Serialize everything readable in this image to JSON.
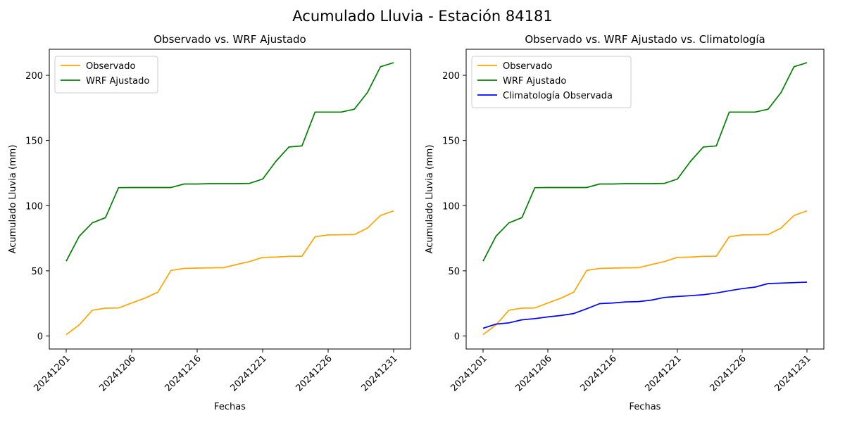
{
  "figure_title": "Acumulado Lluvia - Estación 84181",
  "colors": {
    "observado": "#ffa500",
    "wrf": "#008000",
    "climatologia": "#0000ff"
  },
  "chart_data": [
    {
      "type": "line",
      "title": "Observado vs. WRF Ajustado",
      "xlabel": "Fechas",
      "ylabel": "Acumulado Lluvia (mm)",
      "ylim": [
        -10,
        220
      ],
      "yticks": [
        0,
        50,
        100,
        150,
        200
      ],
      "xticks": [
        "20241201",
        "20241206",
        "20241216",
        "20241221",
        "20241226",
        "20241231"
      ],
      "legend_position": "upper-left",
      "grid": false,
      "categories": [
        "20241201",
        "20241202",
        "20241203",
        "20241204",
        "20241205",
        "20241206",
        "20241207",
        "20241208",
        "20241209",
        "20241210",
        "20241211",
        "20241212",
        "20241213",
        "20241214",
        "20241215",
        "20241216",
        "20241217",
        "20241218",
        "20241219",
        "20241220",
        "20241221",
        "20241222",
        "20241223",
        "20241224",
        "20241225",
        "20241226",
        "20241227",
        "20241228",
        "20241229",
        "20241230",
        "20241231"
      ],
      "series": [
        {
          "name": "Observado",
          "color": "#ffa500",
          "values": [
            1,
            8.5,
            19.8,
            21.3,
            21.5,
            25.3,
            29,
            33.6,
            50.3,
            51.8,
            52.1,
            52.3,
            52.4,
            54.8,
            57.1,
            60.3,
            60.5,
            61.1,
            61.2,
            76.1,
            77.5,
            77.6,
            77.8,
            82.8,
            92.5,
            96,
            null,
            null,
            null,
            null,
            null
          ]
        },
        {
          "name": "WRF Ajustado",
          "color": "#008000",
          "values": [
            57.4,
            76.6,
            86.8,
            90.8,
            113.8,
            113.9,
            113.9,
            113.9,
            113.9,
            116.6,
            116.6,
            116.9,
            116.9,
            116.9,
            117.1,
            120.4,
            133.9,
            145,
            145.8,
            171.8,
            171.8,
            171.8,
            174,
            186.8,
            206.6,
            209.7,
            null,
            null,
            null,
            null,
            null
          ]
        }
      ]
    },
    {
      "type": "line",
      "title": "Observado vs. WRF Ajustado vs. Climatología",
      "xlabel": "Fechas",
      "ylabel": "Acumulado Lluvia (mm)",
      "ylim": [
        -10,
        220
      ],
      "yticks": [
        0,
        50,
        100,
        150,
        200
      ],
      "xticks": [
        "20241201",
        "20241206",
        "20241216",
        "20241221",
        "20241226",
        "20241231"
      ],
      "legend_position": "upper-left",
      "grid": false,
      "categories": [
        "20241201",
        "20241202",
        "20241203",
        "20241204",
        "20241205",
        "20241206",
        "20241207",
        "20241208",
        "20241209",
        "20241210",
        "20241211",
        "20241212",
        "20241213",
        "20241214",
        "20241215",
        "20241216",
        "20241217",
        "20241218",
        "20241219",
        "20241220",
        "20241221",
        "20241222",
        "20241223",
        "20241224",
        "20241225",
        "20241226",
        "20241227",
        "20241228",
        "20241229",
        "20241230",
        "20241231"
      ],
      "series": [
        {
          "name": "Observado",
          "color": "#ffa500",
          "values": [
            1,
            8.5,
            19.8,
            21.3,
            21.5,
            25.3,
            29,
            33.6,
            50.3,
            51.8,
            52.1,
            52.3,
            52.4,
            54.8,
            57.1,
            60.3,
            60.5,
            61.1,
            61.2,
            76.1,
            77.5,
            77.6,
            77.8,
            82.8,
            92.5,
            96,
            null,
            null,
            null,
            null,
            null
          ]
        },
        {
          "name": "WRF Ajustado",
          "color": "#008000",
          "values": [
            57.4,
            76.6,
            86.8,
            90.8,
            113.8,
            113.9,
            113.9,
            113.9,
            113.9,
            116.6,
            116.6,
            116.9,
            116.9,
            116.9,
            117.1,
            120.4,
            133.9,
            145,
            145.8,
            171.8,
            171.8,
            171.8,
            174,
            186.8,
            206.6,
            209.7,
            null,
            null,
            null,
            null,
            null
          ]
        },
        {
          "name": "Climatología Observada",
          "color": "#0000ff",
          "values": [
            5.9,
            9.1,
            10.1,
            12.4,
            13.3,
            14.6,
            15.7,
            17.2,
            20.9,
            24.8,
            25.3,
            26.1,
            26.4,
            27.5,
            29.6,
            30.3,
            30.9,
            31.6,
            33,
            34.7,
            36.3,
            37.5,
            40.2,
            40.6,
            40.9,
            41.3,
            null,
            null,
            null,
            null,
            null
          ]
        }
      ]
    }
  ]
}
